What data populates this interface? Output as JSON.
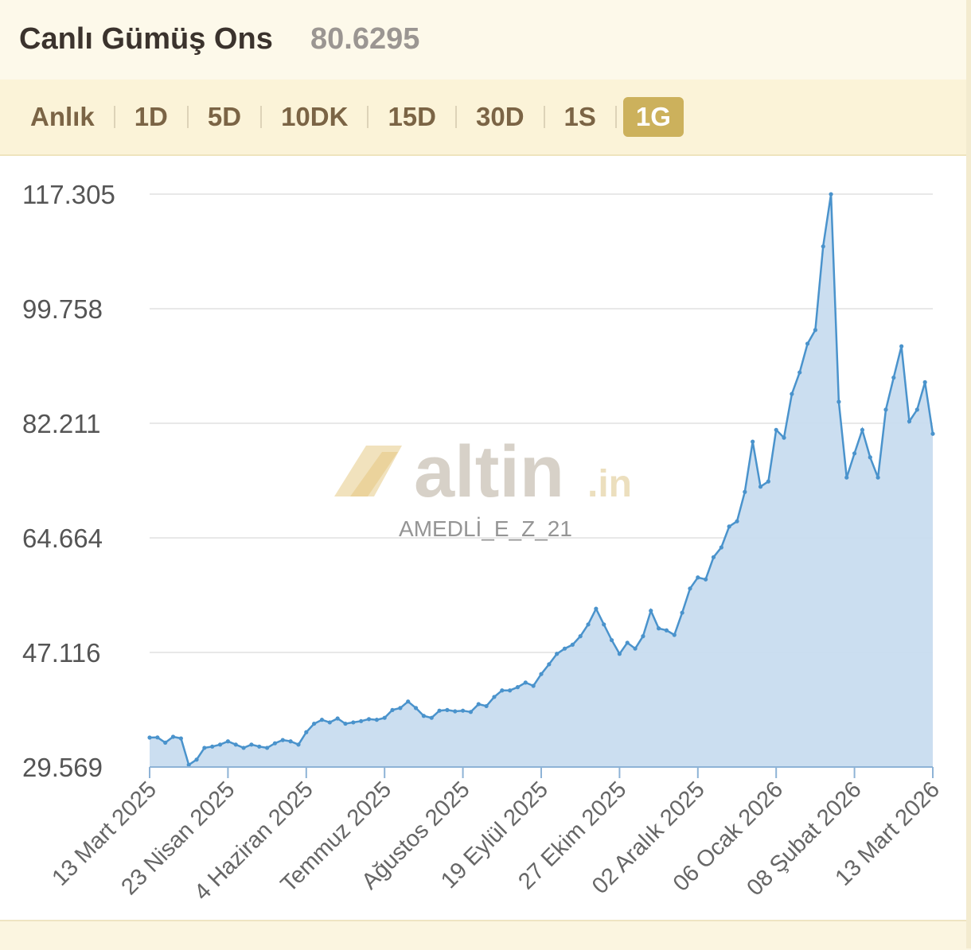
{
  "header": {
    "title": "Canlı Gümüş Ons",
    "price": "80.6295"
  },
  "tabs": {
    "items": [
      "Anlık",
      "1D",
      "5D",
      "10DK",
      "15D",
      "30D",
      "1S",
      "1G"
    ],
    "active": 7
  },
  "watermark": {
    "brand": "altin",
    "tld": ".in",
    "user": "AMEDLİ_E_Z_21"
  },
  "chart_data": {
    "type": "area",
    "categories": [
      "13 Mart 2025",
      null,
      null,
      null,
      null,
      null,
      null,
      null,
      null,
      null,
      "23 Nisan 2025",
      null,
      null,
      null,
      null,
      null,
      null,
      null,
      null,
      null,
      "4 Haziran 2025",
      null,
      null,
      null,
      null,
      null,
      null,
      null,
      null,
      null,
      "Temmuz 2025",
      null,
      null,
      null,
      null,
      null,
      null,
      null,
      null,
      null,
      "Ağustos 2025",
      null,
      null,
      null,
      null,
      null,
      null,
      null,
      null,
      null,
      "19 Eylül 2025",
      null,
      null,
      null,
      null,
      null,
      null,
      null,
      null,
      null,
      "27 Ekim 2025",
      null,
      null,
      null,
      null,
      null,
      null,
      null,
      null,
      null,
      "02 Aralık 2025",
      null,
      null,
      null,
      null,
      null,
      null,
      null,
      null,
      null,
      "06 Ocak 2026",
      null,
      null,
      null,
      null,
      null,
      null,
      null,
      null,
      null,
      "08 Şubat 2026",
      null,
      null,
      null,
      null,
      null,
      null,
      null,
      null,
      null,
      "13 Mart 2026"
    ],
    "values": [
      34.08,
      34.1,
      33.3,
      34.2,
      33.95,
      29.9,
      30.7,
      32.5,
      32.7,
      33.0,
      33.5,
      33.0,
      32.5,
      33.0,
      32.7,
      32.5,
      33.2,
      33.7,
      33.5,
      33.0,
      34.9,
      36.2,
      36.8,
      36.4,
      37.0,
      36.2,
      36.4,
      36.6,
      36.9,
      36.8,
      37.1,
      38.3,
      38.6,
      39.6,
      38.6,
      37.4,
      37.1,
      38.2,
      38.3,
      38.1,
      38.2,
      38.0,
      39.2,
      38.9,
      40.3,
      41.3,
      41.3,
      41.8,
      42.5,
      42.0,
      43.8,
      45.3,
      46.9,
      47.7,
      48.3,
      49.6,
      51.4,
      53.8,
      51.4,
      49.0,
      46.9,
      48.6,
      47.7,
      49.6,
      53.5,
      50.8,
      50.5,
      49.8,
      53.2,
      56.9,
      58.6,
      58.3,
      61.7,
      63.2,
      66.4,
      67.2,
      71.7,
      79.4,
      72.5,
      73.3,
      81.2,
      80.0,
      86.7,
      90.0,
      94.4,
      96.5,
      109.3,
      117.3,
      85.5,
      73.9,
      77.6,
      81.2,
      77.0,
      73.9,
      84.3,
      89.2,
      94.0,
      82.5,
      84.3,
      88.5,
      80.6
    ],
    "color": "#4a93cc",
    "fill_color": "#c8dcef",
    "ylim": [
      29.569,
      117.305
    ],
    "yticks": [
      29.569,
      47.116,
      64.664,
      82.211,
      99.758,
      117.305
    ],
    "grid": true,
    "markers": true
  }
}
